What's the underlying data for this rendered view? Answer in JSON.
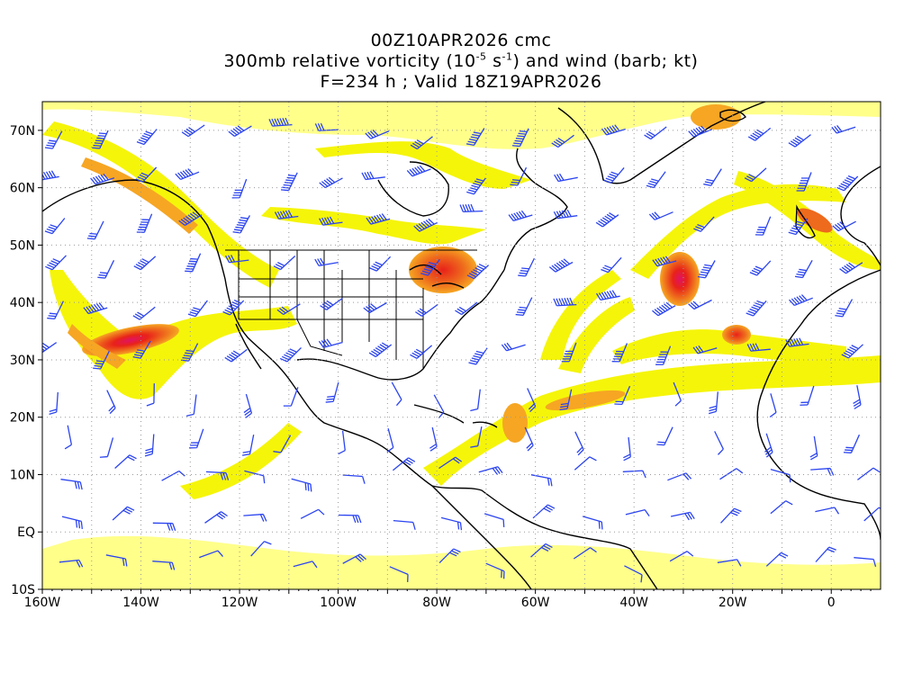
{
  "title": {
    "line1": "00Z10APR2026 cmc",
    "line2_prefix": "300mb relative vorticity (10",
    "line2_exp1": "-5",
    "line2_mid": " s",
    "line2_exp2": "-1",
    "line2_suffix": ") and wind (barb; kt)",
    "line3": "F=234 h ; Valid 18Z19APR2026"
  },
  "map": {
    "projection": "cylindrical lat-lon",
    "lon_range": [
      -160,
      10
    ],
    "lat_range": [
      -10,
      75
    ],
    "grid": "dotted gray every 10 deg",
    "lat_labels": [
      "70N",
      "60N",
      "50N",
      "40N",
      "30N",
      "20N",
      "10N",
      "EQ",
      "10S"
    ],
    "lon_labels": [
      "160W",
      "140W",
      "120W",
      "100W",
      "80W",
      "60W",
      "40W",
      "20W",
      "0"
    ],
    "colors": {
      "shade_light": "#f5f50a",
      "shade_pale": "#ffff8a",
      "shade_orange": "#f6a623",
      "shade_dark_orange": "#ee6a1c",
      "shade_red": "#e8221a",
      "shade_magenta": "#e01464",
      "coastline": "#000000",
      "barb": "#2b44f0",
      "grid": "#9a9a9a"
    },
    "features": [
      "coastline-outline",
      "us-state-borders",
      "wind-barbs",
      "vorticity-shading"
    ]
  }
}
